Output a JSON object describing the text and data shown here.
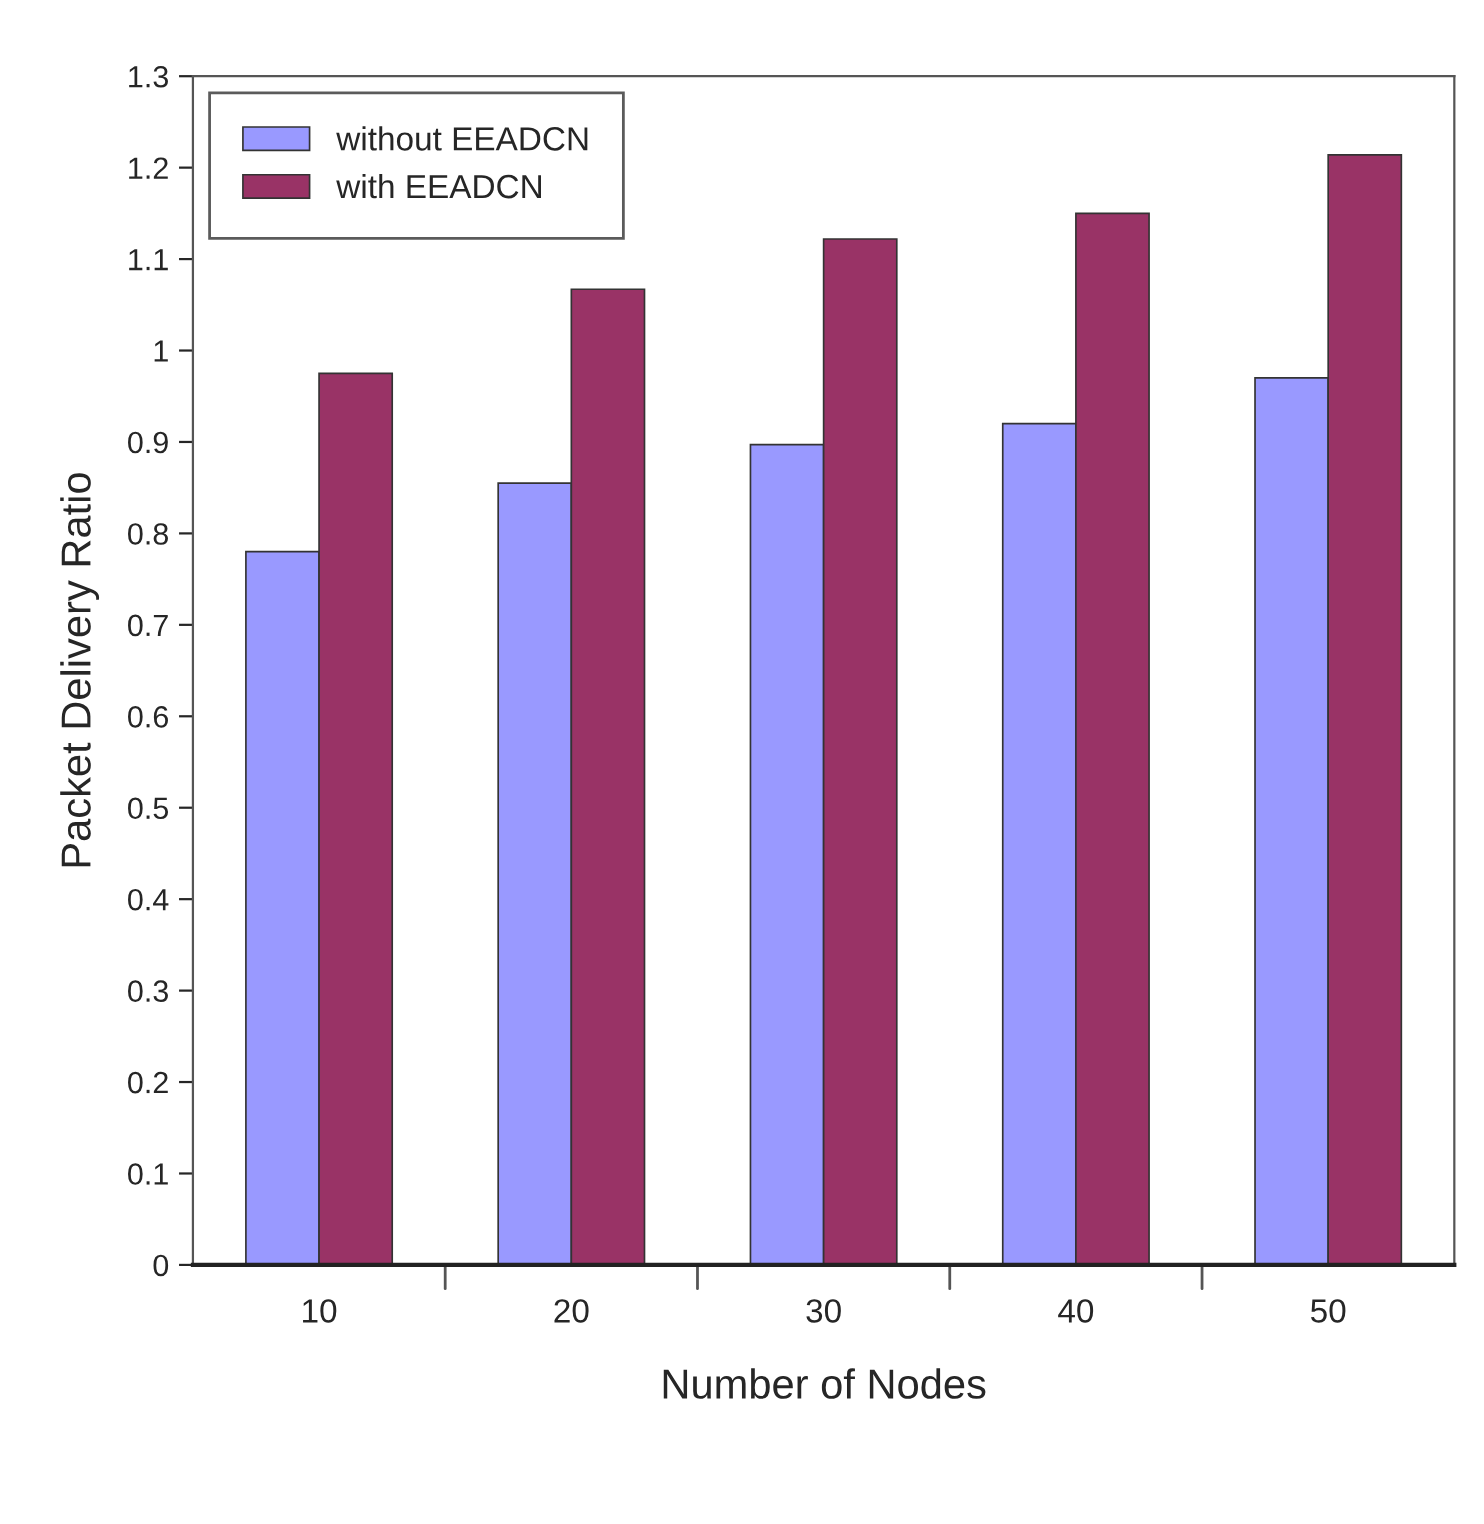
{
  "chart_data": {
    "type": "bar",
    "xlabel": "Number of Nodes",
    "ylabel": "Packet Delivery Ratio",
    "categories": [
      "10",
      "20",
      "30",
      "40",
      "50"
    ],
    "series": [
      {
        "name": "without EEADCN",
        "color": "#9999ff",
        "values": [
          0.78,
          0.855,
          0.897,
          0.92,
          0.97
        ]
      },
      {
        "name": "with EEADCN",
        "color": "#993366",
        "values": [
          0.975,
          1.067,
          1.122,
          1.15,
          1.214
        ]
      }
    ],
    "ylim": [
      0,
      1.3
    ],
    "yticks": [
      0,
      0.1,
      0.2,
      0.3,
      0.4,
      0.5,
      0.6,
      0.7,
      0.8,
      0.9,
      1,
      1.1,
      1.2,
      1.3
    ],
    "grid": false,
    "legend": "top left"
  }
}
